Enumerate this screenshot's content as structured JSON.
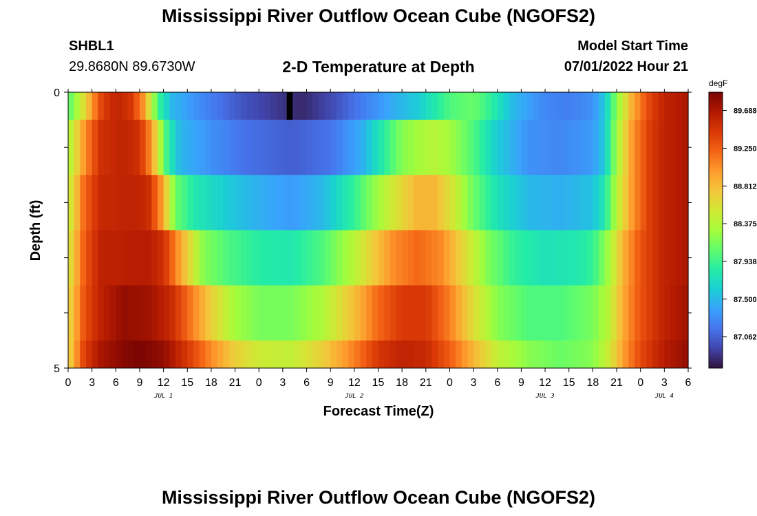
{
  "header": {
    "title": "Mississippi River Outflow Ocean Cube (NGOFS2)",
    "station_id": "SHBL1",
    "station_coords": "29.8680N  89.6730W",
    "subtitle": "2-D Temperature at Depth",
    "model_start_label": "Model Start Time",
    "model_start_value": "07/01/2022 Hour 21",
    "bottom_title": "Mississippi River Outflow Ocean Cube (NGOFS2)"
  },
  "chart_data": {
    "type": "heatmap",
    "title": "2-D Temperature at Depth",
    "xlabel": "Forecast Time(Z)",
    "ylabel": "Depth (ft)",
    "ylim": [
      0,
      5
    ],
    "y_tick_labels": [
      "0",
      "5"
    ],
    "x_tick_labels": [
      "0",
      "3",
      "6",
      "9",
      "12",
      "15",
      "18",
      "21",
      "0",
      "3",
      "6",
      "9",
      "12",
      "15",
      "18",
      "21",
      "0",
      "3",
      "6",
      "9",
      "12",
      "15",
      "18",
      "21",
      "0",
      "3",
      "6"
    ],
    "date_labels": [
      {
        "label": "JUL 1",
        "hour": 12
      },
      {
        "label": "JUL 2",
        "hour": 36
      },
      {
        "label": "JUL 3",
        "hour": 60
      },
      {
        "label": "JUL 4",
        "hour": 75
      }
    ],
    "x_hours": [
      0,
      78
    ],
    "units": "degF",
    "colorbar": {
      "min": 86.7,
      "max": 89.9,
      "ticks": [
        "89.688",
        "89.250",
        "88.812",
        "88.375",
        "87.938",
        "87.500",
        "87.062"
      ],
      "colors": [
        "#30123b",
        "#4145ab",
        "#4675ed",
        "#39a2fc",
        "#1bcfd4",
        "#24eca6",
        "#61fc6c",
        "#a4fc3b",
        "#d1e834",
        "#f3c63a",
        "#fe9b2d",
        "#f36315",
        "#d93806",
        "#b11901",
        "#7a0402"
      ]
    },
    "depth_layers": [
      {
        "depth_range": [
          0.0,
          0.5
        ],
        "keyframes": [
          [
            0,
            88.0
          ],
          [
            2,
            88.6
          ],
          [
            4,
            89.35
          ],
          [
            6,
            89.6
          ],
          [
            8,
            89.45
          ],
          [
            9.5,
            89.0
          ],
          [
            10.5,
            88.4
          ],
          [
            11.5,
            87.9
          ],
          [
            13,
            87.5
          ],
          [
            17,
            87.25
          ],
          [
            22,
            87.0
          ],
          [
            27,
            86.85
          ],
          [
            29.5,
            86.8
          ],
          [
            33,
            86.95
          ],
          [
            37,
            87.2
          ],
          [
            41,
            87.45
          ],
          [
            44,
            87.6
          ],
          [
            46,
            87.8
          ],
          [
            48,
            88.0
          ],
          [
            51,
            88.1
          ],
          [
            53,
            87.9
          ],
          [
            56,
            87.5
          ],
          [
            60,
            87.25
          ],
          [
            63,
            87.2
          ],
          [
            66,
            87.3
          ],
          [
            67.5,
            87.6
          ],
          [
            69,
            88.2
          ],
          [
            71,
            88.9
          ],
          [
            73,
            89.35
          ],
          [
            75,
            89.6
          ],
          [
            78,
            89.7
          ]
        ]
      },
      {
        "depth_range": [
          0.5,
          1.5
        ],
        "keyframes": [
          [
            0,
            88.3
          ],
          [
            2,
            89.0
          ],
          [
            4,
            89.5
          ],
          [
            7,
            89.6
          ],
          [
            9,
            89.5
          ],
          [
            10.5,
            89.0
          ],
          [
            11.5,
            88.4
          ],
          [
            12.5,
            87.9
          ],
          [
            14,
            87.5
          ],
          [
            18,
            87.3
          ],
          [
            22,
            87.15
          ],
          [
            28,
            87.05
          ],
          [
            33,
            87.15
          ],
          [
            37,
            87.45
          ],
          [
            40,
            87.9
          ],
          [
            42,
            88.2
          ],
          [
            46,
            88.4
          ],
          [
            48,
            88.3
          ],
          [
            51,
            88.0
          ],
          [
            54,
            87.6
          ],
          [
            58,
            87.3
          ],
          [
            62,
            87.25
          ],
          [
            66,
            87.35
          ],
          [
            67.5,
            87.6
          ],
          [
            69,
            88.3
          ],
          [
            71,
            89.0
          ],
          [
            73,
            89.4
          ],
          [
            75,
            89.6
          ],
          [
            78,
            89.7
          ]
        ]
      },
      {
        "depth_range": [
          1.5,
          2.5
        ],
        "keyframes": [
          [
            0,
            88.4
          ],
          [
            2,
            89.2
          ],
          [
            4,
            89.55
          ],
          [
            8,
            89.6
          ],
          [
            10,
            89.55
          ],
          [
            11.5,
            89.1
          ],
          [
            12.5,
            88.6
          ],
          [
            13.5,
            88.1
          ],
          [
            16,
            87.8
          ],
          [
            20,
            87.6
          ],
          [
            24,
            87.45
          ],
          [
            28,
            87.35
          ],
          [
            32,
            87.5
          ],
          [
            36,
            87.9
          ],
          [
            39,
            88.3
          ],
          [
            41,
            88.55
          ],
          [
            44,
            88.85
          ],
          [
            46,
            88.85
          ],
          [
            48,
            88.6
          ],
          [
            51,
            88.1
          ],
          [
            54,
            87.75
          ],
          [
            58,
            87.5
          ],
          [
            62,
            87.45
          ],
          [
            66,
            87.55
          ],
          [
            67.5,
            87.8
          ],
          [
            69,
            88.4
          ],
          [
            71,
            89.0
          ],
          [
            73,
            89.4
          ],
          [
            75,
            89.6
          ],
          [
            78,
            89.7
          ]
        ]
      },
      {
        "depth_range": [
          2.5,
          3.5
        ],
        "keyframes": [
          [
            0,
            88.5
          ],
          [
            2,
            89.25
          ],
          [
            4,
            89.6
          ],
          [
            10,
            89.65
          ],
          [
            12,
            89.5
          ],
          [
            13.5,
            89.1
          ],
          [
            15,
            88.7
          ],
          [
            17,
            88.2
          ],
          [
            20,
            88.0
          ],
          [
            24,
            87.85
          ],
          [
            28,
            87.8
          ],
          [
            32,
            88.0
          ],
          [
            36,
            88.4
          ],
          [
            39,
            88.8
          ],
          [
            41,
            89.05
          ],
          [
            44,
            89.2
          ],
          [
            47,
            89.05
          ],
          [
            50,
            88.6
          ],
          [
            53,
            88.15
          ],
          [
            56,
            87.9
          ],
          [
            60,
            87.75
          ],
          [
            64,
            87.8
          ],
          [
            66,
            87.9
          ],
          [
            68,
            88.3
          ],
          [
            70,
            88.9
          ],
          [
            72,
            89.3
          ],
          [
            75,
            89.6
          ],
          [
            78,
            89.7
          ]
        ]
      },
      {
        "depth_range": [
          3.5,
          4.5
        ],
        "keyframes": [
          [
            0,
            88.6
          ],
          [
            2,
            89.3
          ],
          [
            4,
            89.6
          ],
          [
            7,
            89.8
          ],
          [
            10,
            89.75
          ],
          [
            13,
            89.55
          ],
          [
            15,
            89.2
          ],
          [
            18,
            88.7
          ],
          [
            21,
            88.3
          ],
          [
            24,
            88.15
          ],
          [
            28,
            88.15
          ],
          [
            32,
            88.35
          ],
          [
            36,
            88.8
          ],
          [
            39,
            89.2
          ],
          [
            42,
            89.45
          ],
          [
            45,
            89.45
          ],
          [
            48,
            89.1
          ],
          [
            51,
            88.6
          ],
          [
            54,
            88.2
          ],
          [
            58,
            88.0
          ],
          [
            62,
            88.0
          ],
          [
            66,
            88.15
          ],
          [
            68,
            88.4
          ],
          [
            70,
            88.95
          ],
          [
            72,
            89.3
          ],
          [
            75,
            89.6
          ],
          [
            78,
            89.75
          ]
        ]
      },
      {
        "depth_range": [
          4.5,
          5.0
        ],
        "keyframes": [
          [
            0,
            88.6
          ],
          [
            2,
            89.4
          ],
          [
            4,
            89.7
          ],
          [
            7,
            89.85
          ],
          [
            9,
            89.9
          ],
          [
            12,
            89.8
          ],
          [
            15,
            89.45
          ],
          [
            18,
            89.05
          ],
          [
            21,
            88.7
          ],
          [
            24,
            88.5
          ],
          [
            28,
            88.45
          ],
          [
            32,
            88.7
          ],
          [
            36,
            89.1
          ],
          [
            39,
            89.45
          ],
          [
            42,
            89.6
          ],
          [
            45,
            89.55
          ],
          [
            48,
            89.25
          ],
          [
            51,
            88.85
          ],
          [
            54,
            88.45
          ],
          [
            58,
            88.2
          ],
          [
            62,
            88.1
          ],
          [
            66,
            88.2
          ],
          [
            68,
            88.5
          ],
          [
            70,
            89.0
          ],
          [
            72,
            89.35
          ],
          [
            75,
            89.65
          ],
          [
            78,
            89.8
          ]
        ]
      }
    ],
    "anomaly_column": {
      "hour_start": 27.5,
      "hour_end": 28.25,
      "depth_range": [
        0.0,
        0.5
      ],
      "value": 86.5
    }
  }
}
